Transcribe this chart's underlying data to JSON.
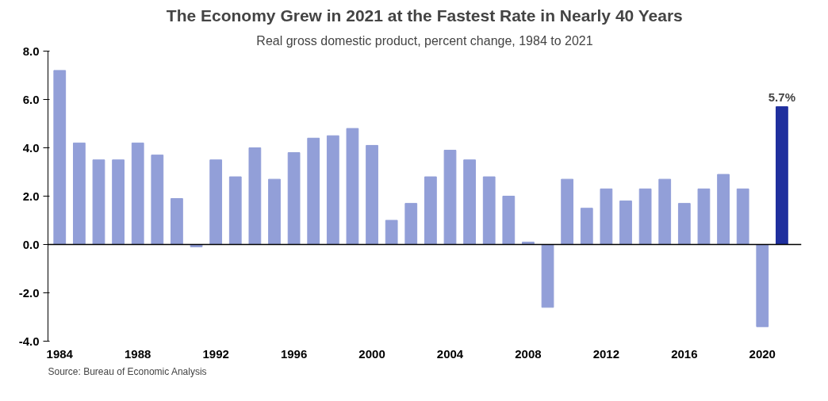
{
  "chart_data": {
    "type": "bar",
    "title": "The Economy Grew in 2021 at the Fastest Rate in Nearly 40 Years",
    "subtitle": "Real gross domestic product, percent change, 1984 to 2021",
    "x": [
      1984,
      1985,
      1986,
      1987,
      1988,
      1989,
      1990,
      1991,
      1992,
      1993,
      1994,
      1995,
      1996,
      1997,
      1998,
      1999,
      2000,
      2001,
      2002,
      2003,
      2004,
      2005,
      2006,
      2007,
      2008,
      2009,
      2010,
      2011,
      2012,
      2013,
      2014,
      2015,
      2016,
      2017,
      2018,
      2019,
      2020,
      2021
    ],
    "values": [
      7.2,
      4.2,
      3.5,
      3.5,
      4.2,
      3.7,
      1.9,
      -0.1,
      3.5,
      2.8,
      4.0,
      2.7,
      3.8,
      4.4,
      4.5,
      4.8,
      4.1,
      1.0,
      1.7,
      2.8,
      3.9,
      3.5,
      2.8,
      2.0,
      0.1,
      -2.6,
      2.7,
      1.5,
      2.3,
      1.8,
      2.3,
      2.7,
      1.7,
      2.3,
      2.9,
      2.3,
      -3.4,
      5.7
    ],
    "colors": [
      "#929fd8",
      "#929fd8",
      "#929fd8",
      "#929fd8",
      "#929fd8",
      "#929fd8",
      "#929fd8",
      "#929fd8",
      "#929fd8",
      "#929fd8",
      "#929fd8",
      "#929fd8",
      "#929fd8",
      "#929fd8",
      "#929fd8",
      "#929fd8",
      "#929fd8",
      "#929fd8",
      "#929fd8",
      "#929fd8",
      "#929fd8",
      "#929fd8",
      "#929fd8",
      "#929fd8",
      "#929fd8",
      "#929fd8",
      "#929fd8",
      "#929fd8",
      "#929fd8",
      "#929fd8",
      "#929fd8",
      "#929fd8",
      "#929fd8",
      "#929fd8",
      "#929fd8",
      "#929fd8",
      "#929fd8",
      "#1f2f9e"
    ],
    "value_labels": [
      null,
      null,
      null,
      null,
      null,
      null,
      null,
      null,
      null,
      null,
      null,
      null,
      null,
      null,
      null,
      null,
      null,
      null,
      null,
      null,
      null,
      null,
      null,
      null,
      null,
      null,
      null,
      null,
      null,
      null,
      null,
      null,
      null,
      null,
      null,
      null,
      null,
      "5.7%"
    ],
    "xlim": [
      1983.4,
      2022
    ],
    "xticks": [
      1984,
      1988,
      1992,
      1996,
      2000,
      2004,
      2008,
      2012,
      2016,
      2020
    ],
    "ylim": [
      -4,
      8
    ],
    "yticks": [
      {
        "value": -4,
        "label": "-4.0"
      },
      {
        "value": -2,
        "label": "-2.0"
      },
      {
        "value": 0,
        "label": "0.0"
      },
      {
        "value": 2,
        "label": "2.0"
      },
      {
        "value": 4,
        "label": "4.0"
      },
      {
        "value": 6,
        "label": "6.0"
      },
      {
        "value": 8,
        "label": "8.0"
      }
    ],
    "ref_lines": [
      {
        "axis": "y",
        "value": 0,
        "color": "#000000"
      }
    ],
    "grid": false,
    "annotations": [
      "Source: Bureau of Economic Analysis"
    ]
  }
}
